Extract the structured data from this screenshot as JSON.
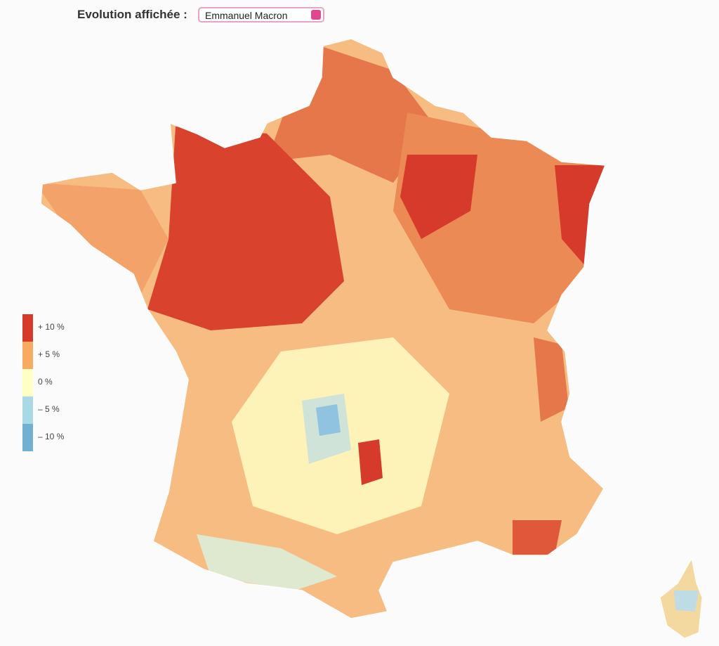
{
  "header": {
    "label": "Evolution affichée :",
    "selected": "Emmanuel Macron"
  },
  "legend": {
    "items": [
      {
        "label": "+ 10 %",
        "color": "#d63a2a"
      },
      {
        "label": "+ 5 %",
        "color": "#f7aa60"
      },
      {
        "label": "0 %",
        "color": "#ffffc4"
      },
      {
        "label": "– 5 %",
        "color": "#a9d9e4"
      },
      {
        "label": "– 10 %",
        "color": "#72b0d3"
      }
    ]
  }
}
